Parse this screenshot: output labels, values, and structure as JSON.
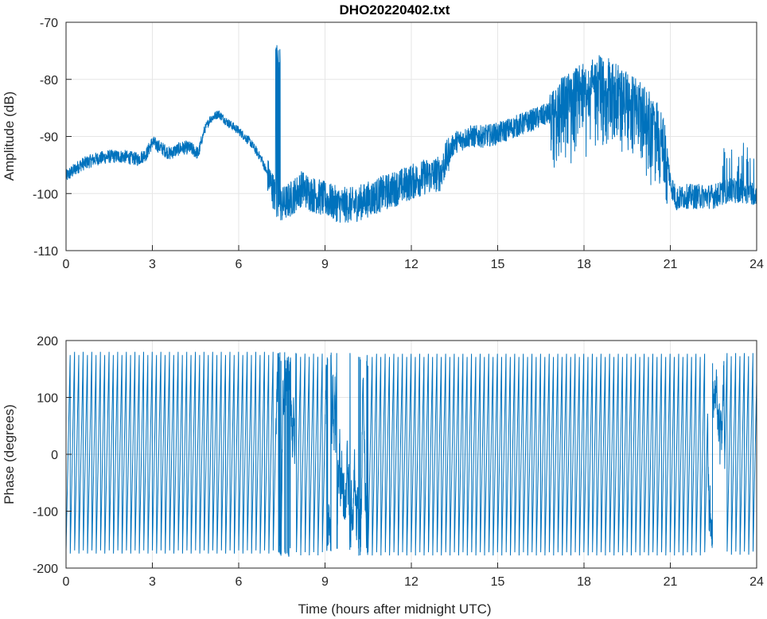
{
  "chart_data": [
    {
      "type": "line",
      "title": "DHO20220402.txt",
      "xlabel": "",
      "ylabel": "Amplitude (dB)",
      "xlim": [
        0,
        24
      ],
      "ylim": [
        -110,
        -70
      ],
      "xticks": [
        "0",
        "3",
        "6",
        "9",
        "12",
        "15",
        "18",
        "21",
        "24"
      ],
      "yticks": [
        "-110",
        "-100",
        "-90",
        "-80",
        "-70"
      ],
      "grid": true,
      "color": "#0072bd",
      "series": [
        {
          "x": [
            0,
            0.5,
            1.0,
            1.5,
            2.0,
            2.5,
            2.8,
            3.0,
            3.3,
            3.6,
            4.0,
            4.3,
            4.6,
            4.8,
            5.0,
            5.3,
            5.6,
            6.0,
            6.4,
            6.8,
            7.1,
            7.3,
            7.5,
            7.8,
            8.0,
            8.2,
            8.5,
            9.0,
            9.5,
            10.0,
            10.5,
            11.0,
            11.5,
            12.0,
            12.5,
            13.0,
            13.3,
            13.5,
            13.8,
            14.0,
            14.5,
            15.0,
            15.5,
            16.0,
            16.5,
            16.8,
            17.0,
            17.5,
            18.0,
            18.5,
            19.0,
            19.5,
            20.0,
            20.5,
            20.8,
            21.0,
            21.2,
            21.5,
            22.0,
            22.5,
            23.0,
            23.5,
            24.0
          ],
          "y": [
            -97,
            -95,
            -94,
            -93.5,
            -93.5,
            -94,
            -93,
            -91,
            -92,
            -93,
            -92,
            -92,
            -93,
            -89,
            -87,
            -86,
            -87.5,
            -89,
            -91,
            -94,
            -98,
            -101,
            -102,
            -101,
            -100,
            -99,
            -100,
            -101,
            -102,
            -102,
            -101,
            -100,
            -99,
            -98,
            -97,
            -96.5,
            -93,
            -91,
            -90.5,
            -90,
            -90,
            -89.5,
            -88.5,
            -87.5,
            -86.5,
            -86,
            -84,
            -82,
            -80.5,
            -79,
            -80,
            -82,
            -84,
            -87,
            -90,
            -98,
            -101,
            -100.5,
            -100.5,
            -100.5,
            -99.5,
            -99.5,
            -100
          ]
        }
      ]
    },
    {
      "type": "line",
      "title": "",
      "xlabel": "Time (hours after midnight UTC)",
      "ylabel": "Phase (degrees)",
      "xlim": [
        0,
        24
      ],
      "ylim": [
        -200,
        200
      ],
      "xticks": [
        "0",
        "3",
        "6",
        "9",
        "12",
        "15",
        "18",
        "21",
        "24"
      ],
      "yticks": [
        "-200",
        "-100",
        "0",
        "100",
        "200"
      ],
      "grid": true,
      "color": "#0072bd",
      "series": [
        {
          "pattern": "sawtooth wrapping between -180 and 180",
          "x": [
            0,
            24
          ],
          "y_range": [
            -180,
            180
          ],
          "approx_cycles": 160
        }
      ]
    }
  ]
}
